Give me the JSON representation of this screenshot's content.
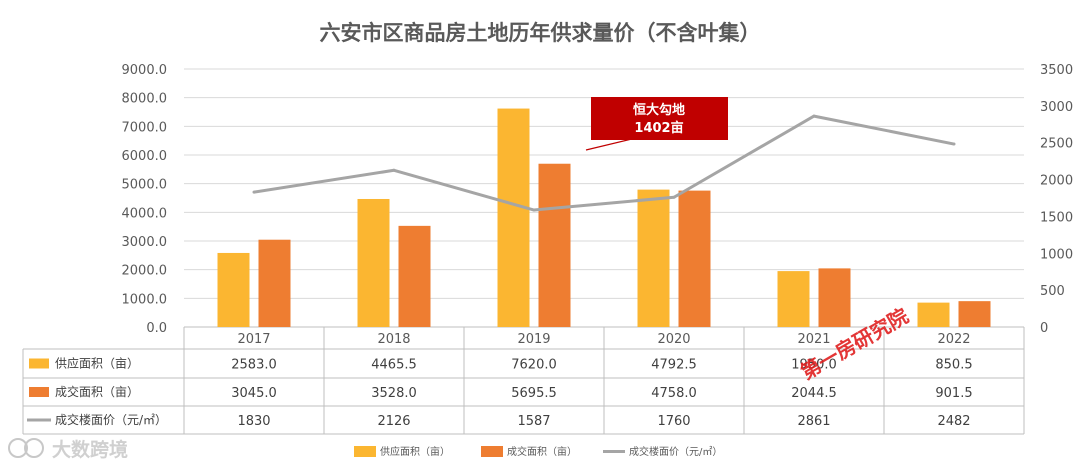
{
  "chart_data": {
    "type": "bar",
    "title": "六安市区商品房土地历年供求量价（不含叶集）",
    "categories": [
      "2017",
      "2018",
      "2019",
      "2020",
      "2021",
      "2022"
    ],
    "series": [
      {
        "name": "供应面积（亩）",
        "type": "bar",
        "axis": "left",
        "color": "#FBB631",
        "values": [
          2583.0,
          4465.5,
          7620.0,
          4792.5,
          1950.0,
          850.5
        ],
        "labels": [
          "2583.0",
          "4465.5",
          "7620.0",
          "4792.5",
          "1950.0",
          "850.5"
        ]
      },
      {
        "name": "成交面积（亩）",
        "type": "bar",
        "axis": "left",
        "color": "#EE7D31",
        "values": [
          3045.0,
          3528.0,
          5695.5,
          4758.0,
          2044.5,
          901.5
        ],
        "labels": [
          "3045.0",
          "3528.0",
          "5695.5",
          "4758.0",
          "2044.5",
          "901.5"
        ]
      },
      {
        "name": "成交楼面价（元/㎡）",
        "type": "line",
        "axis": "right",
        "color": "#A5A5A5",
        "values": [
          1830,
          2126,
          1587,
          1760,
          2861,
          2482
        ],
        "labels": [
          "1830",
          "2126",
          "1587",
          "1760",
          "2861",
          "2482"
        ]
      }
    ],
    "y_left": {
      "min": 0,
      "max": 9000,
      "step": 1000,
      "ticks": [
        "0.0",
        "1000.0",
        "2000.0",
        "3000.0",
        "4000.0",
        "5000.0",
        "6000.0",
        "7000.0",
        "8000.0",
        "9000.0"
      ]
    },
    "y_right": {
      "min": 0,
      "max": 3500,
      "step": 500,
      "ticks": [
        "0",
        "500",
        "1000",
        "1500",
        "2000",
        "2500",
        "3000",
        "3500"
      ]
    },
    "grid": true,
    "legend_position": "bottom",
    "annotation": {
      "lines": [
        "恒大勾地",
        "1402亩"
      ],
      "color": "#C00000"
    }
  },
  "overlays": {
    "watermark_text": "第一房研究院",
    "logo_text": "大数跨境"
  }
}
